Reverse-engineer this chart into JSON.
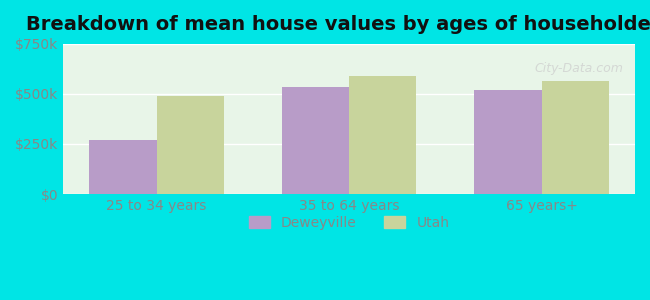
{
  "title": "Breakdown of mean house values by ages of householders",
  "categories": [
    "25 to 34 years",
    "35 to 64 years",
    "65 years+"
  ],
  "deweyville_values": [
    270000,
    535000,
    520000
  ],
  "utah_values": [
    490000,
    590000,
    565000
  ],
  "deweyville_color": "#b89cc8",
  "utah_color": "#c8d49c",
  "ylim": [
    0,
    750000
  ],
  "yticks": [
    0,
    250000,
    500000,
    750000
  ],
  "ytick_labels": [
    "$0",
    "$250k",
    "$500k",
    "$750k"
  ],
  "background_outer": "#00e5e5",
  "background_inner": "#e8f5e8",
  "legend_labels": [
    "Deweyville",
    "Utah"
  ],
  "bar_width": 0.35,
  "grid_color": "#ffffff",
  "title_fontsize": 14,
  "tick_fontsize": 10,
  "legend_fontsize": 10
}
